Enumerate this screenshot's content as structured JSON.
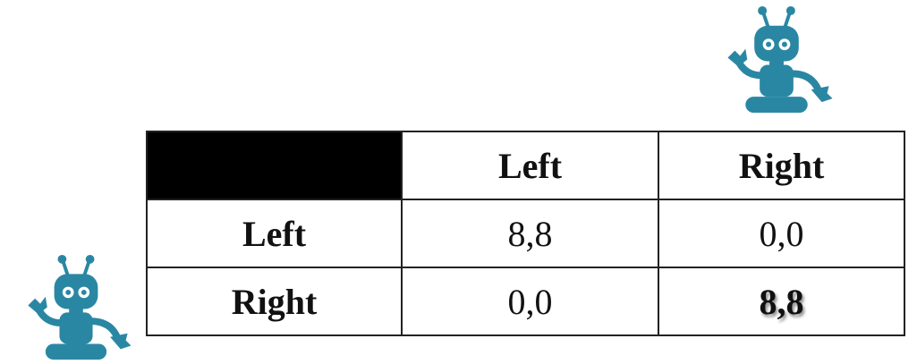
{
  "table": {
    "columns": [
      "Left",
      "Right"
    ],
    "rows": [
      {
        "label": "Left",
        "cells": [
          "8,8",
          "0,0"
        ]
      },
      {
        "label": "Right",
        "cells": [
          "0,0",
          "8,8"
        ]
      }
    ]
  }
}
